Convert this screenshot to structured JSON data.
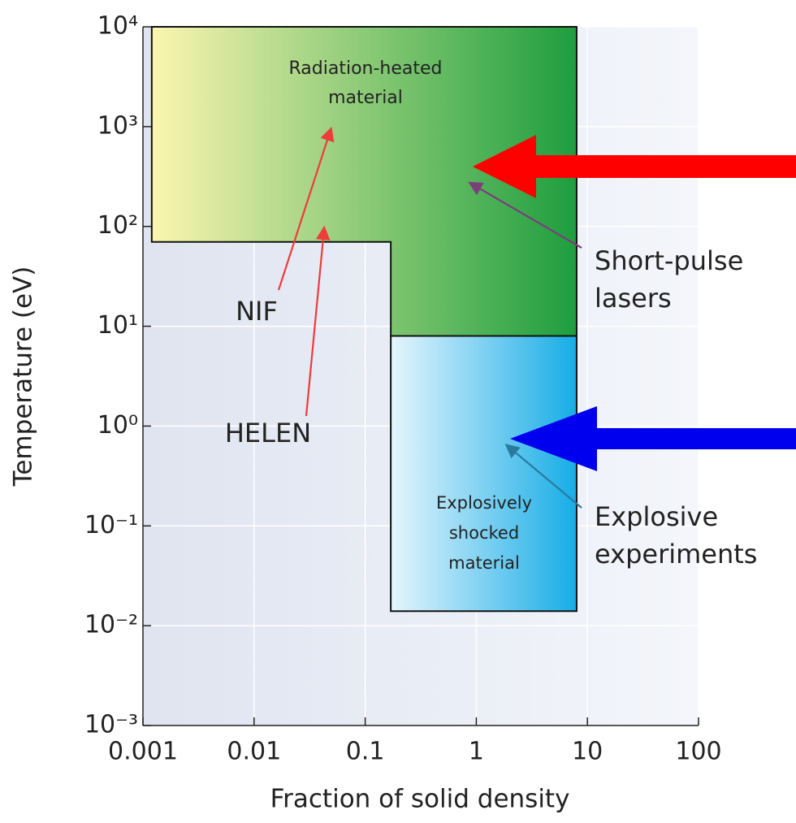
{
  "chart_data": {
    "type": "region",
    "xlabel": "Fraction of solid density",
    "ylabel": "Temperature (eV)",
    "xscale": "log",
    "yscale": "log",
    "xlim": [
      0.001,
      100
    ],
    "ylim": [
      0.001,
      10000
    ],
    "xticks": [
      0.001,
      0.01,
      0.1,
      1,
      10,
      100
    ],
    "yticks": [
      {
        "value": 0.001,
        "label": "10⁻³"
      },
      {
        "value": 0.01,
        "label": "10⁻²"
      },
      {
        "value": 0.1,
        "label": "10⁻¹"
      },
      {
        "value": 1,
        "label": "10⁰"
      },
      {
        "value": 10,
        "label": "10¹"
      },
      {
        "value": 100,
        "label": "10²"
      },
      {
        "value": 1000,
        "label": "10³"
      },
      {
        "value": 10000,
        "label": "10⁴"
      }
    ],
    "grid": true,
    "regions": [
      {
        "label": [
          "Radiation-heated",
          "material"
        ],
        "colors": [
          "#fbf6b0",
          "#1d9e3e"
        ],
        "x": [
          0.0012,
          8,
          8,
          0.17,
          0.17,
          0.0012
        ],
        "y": [
          10000,
          10000,
          8,
          8,
          70,
          70
        ]
      },
      {
        "label": [
          "Explosively",
          "shocked",
          "material"
        ],
        "colors": [
          "#e6f5fd",
          "#16ade6"
        ],
        "x": [
          0.17,
          8,
          8,
          0.17
        ],
        "y": [
          8,
          8,
          0.014,
          0.014
        ]
      }
    ],
    "annotations": [
      {
        "lines": [
          "NIF"
        ],
        "color": "#ee3b3b"
      },
      {
        "lines": [
          "HELEN"
        ],
        "color": "#ee3b3b"
      },
      {
        "lines": [
          "Short-pulse",
          "lasers"
        ],
        "color": "#7b3f7b"
      },
      {
        "lines": [
          "Explosive",
          "experiments"
        ],
        "color": "#2a7aa0"
      }
    ]
  }
}
